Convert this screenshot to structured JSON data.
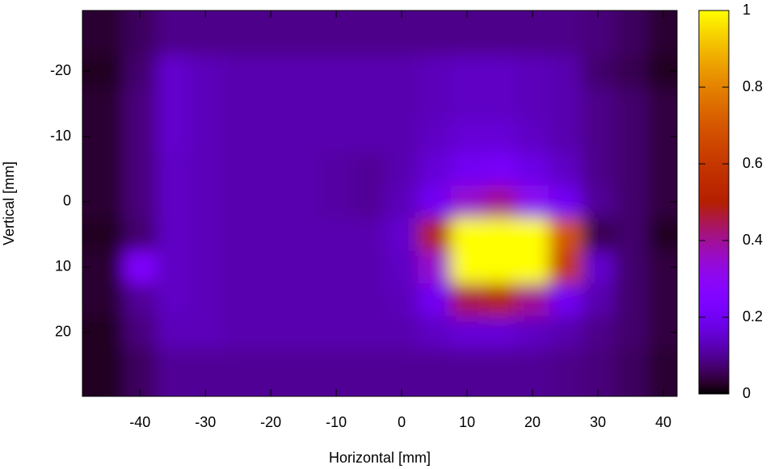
{
  "chart_data": {
    "type": "heatmap",
    "x_label": "Horizontal [mm]",
    "y_label": "Vertical [mm]",
    "x": [
      -45,
      -40,
      -35,
      -30,
      -25,
      -20,
      -15,
      -10,
      -5,
      0,
      5,
      10,
      15,
      20,
      25,
      30,
      35,
      40
    ],
    "y": [
      -25,
      -20,
      -15,
      -10,
      -5,
      0,
      5,
      10,
      15,
      20,
      25
    ],
    "z": [
      [
        0.03,
        0.06,
        0.09,
        0.09,
        0.09,
        0.09,
        0.09,
        0.09,
        0.09,
        0.09,
        0.09,
        0.09,
        0.09,
        0.09,
        0.09,
        0.08,
        0.06,
        0.03
      ],
      [
        0.02,
        0.07,
        0.15,
        0.13,
        0.12,
        0.12,
        0.12,
        0.12,
        0.12,
        0.12,
        0.13,
        0.14,
        0.14,
        0.13,
        0.12,
        0.07,
        0.05,
        0.02
      ],
      [
        0.03,
        0.08,
        0.15,
        0.13,
        0.12,
        0.12,
        0.12,
        0.12,
        0.12,
        0.12,
        0.13,
        0.14,
        0.14,
        0.13,
        0.12,
        0.09,
        0.07,
        0.04
      ],
      [
        0.03,
        0.08,
        0.15,
        0.13,
        0.12,
        0.12,
        0.12,
        0.12,
        0.12,
        0.12,
        0.14,
        0.16,
        0.16,
        0.14,
        0.12,
        0.09,
        0.07,
        0.04
      ],
      [
        0.03,
        0.08,
        0.14,
        0.13,
        0.12,
        0.12,
        0.12,
        0.11,
        0.1,
        0.12,
        0.16,
        0.2,
        0.22,
        0.18,
        0.14,
        0.09,
        0.07,
        0.04
      ],
      [
        0.03,
        0.08,
        0.14,
        0.13,
        0.12,
        0.12,
        0.12,
        0.11,
        0.1,
        0.13,
        0.2,
        0.35,
        0.4,
        0.3,
        0.2,
        0.1,
        0.07,
        0.04
      ],
      [
        0.02,
        0.07,
        0.14,
        0.13,
        0.12,
        0.12,
        0.12,
        0.12,
        0.12,
        0.15,
        0.5,
        1,
        1,
        1,
        0.7,
        0.05,
        0.07,
        0.02
      ],
      [
        0.03,
        0.25,
        0.14,
        0.13,
        0.12,
        0.12,
        0.12,
        0.12,
        0.12,
        0.14,
        0.35,
        1,
        1,
        1,
        0.6,
        0.15,
        0.07,
        0.04
      ],
      [
        0.03,
        0.1,
        0.14,
        0.13,
        0.12,
        0.12,
        0.12,
        0.12,
        0.12,
        0.13,
        0.2,
        0.45,
        0.5,
        0.4,
        0.2,
        0.12,
        0.07,
        0.04
      ],
      [
        0.02,
        0.08,
        0.13,
        0.13,
        0.12,
        0.12,
        0.12,
        0.12,
        0.12,
        0.12,
        0.14,
        0.16,
        0.16,
        0.14,
        0.12,
        0.09,
        0.07,
        0.04
      ],
      [
        0.02,
        0.06,
        0.1,
        0.1,
        0.1,
        0.1,
        0.1,
        0.1,
        0.1,
        0.1,
        0.1,
        0.1,
        0.1,
        0.1,
        0.09,
        0.08,
        0.06,
        0.03
      ]
    ],
    "xlim": [
      -48.8,
      42.1
    ],
    "xticks": [
      -40,
      -30,
      -20,
      -10,
      0,
      10,
      20,
      30,
      40
    ],
    "ylim": [
      -29.3,
      29.8
    ],
    "yticks": [
      -20,
      -10,
      0,
      10,
      20
    ],
    "zlim": [
      0,
      1
    ],
    "zticks": [
      0,
      0.2,
      0.4,
      0.6,
      0.8,
      1
    ],
    "colormap": "gnuplot"
  }
}
